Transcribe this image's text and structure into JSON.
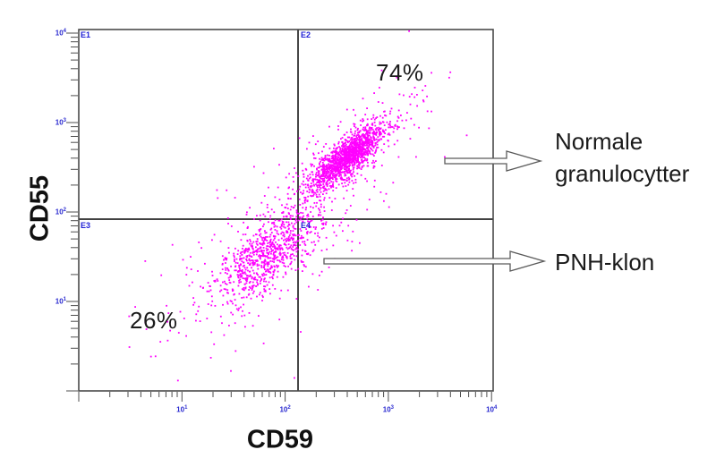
{
  "chart_data": {
    "type": "scatter",
    "title": "",
    "xlabel": "CD59",
    "ylabel": "CD55",
    "x_scale": "log",
    "y_scale": "log",
    "x_range_decades": [
      0,
      4
    ],
    "y_range_decades": [
      0,
      4
    ],
    "grid": false,
    "point_color": "#ff00ff",
    "tick_label_color": "#2a2ad0",
    "quadrant_label_color": "#1f1fd6",
    "x_tick_labels": [
      {
        "decade": 1,
        "base": "10",
        "exp": "1"
      },
      {
        "decade": 2,
        "base": "10",
        "exp": "2"
      },
      {
        "decade": 3,
        "base": "10",
        "exp": "3"
      },
      {
        "decade": 4,
        "base": "10",
        "exp": "4"
      }
    ],
    "y_tick_labels": [
      {
        "decade": 1,
        "base": "10",
        "exp": "1"
      },
      {
        "decade": 2,
        "base": "10",
        "exp": "2"
      },
      {
        "decade": 3,
        "base": "10",
        "exp": "3"
      },
      {
        "decade": 4,
        "base": "10",
        "exp": "4"
      }
    ],
    "quadrant_gate": {
      "x_decade": 2.125,
      "y_decade": 1.92,
      "labels": {
        "upper_left": "E1",
        "upper_right": "E2",
        "lower_left": "E3",
        "lower_right": "E4"
      }
    },
    "quadrant_stats": {
      "upper_right": "74%",
      "lower_left": "26%"
    },
    "clusters": [
      {
        "name": "normale-granulocytter",
        "center_decades": [
          2.61,
          2.62
        ],
        "sigma_along": 0.22,
        "sigma_perp": 0.075,
        "angle_deg": 45,
        "count": 1600,
        "halo_fraction": 0.2,
        "halo_scale": 2.4
      },
      {
        "name": "pnh-klon",
        "center_decades": [
          1.82,
          1.5
        ],
        "sigma_along": 0.3,
        "sigma_perp": 0.14,
        "angle_deg": 45,
        "count": 900,
        "halo_fraction": 0.28,
        "halo_scale": 2.4
      },
      {
        "name": "bridge",
        "center_decades": [
          2.12,
          2.02
        ],
        "sigma_along": 0.45,
        "sigma_perp": 0.11,
        "angle_deg": 45,
        "count": 140,
        "halo_fraction": 0.5,
        "halo_scale": 1.6
      }
    ],
    "annotations": [
      {
        "id": "normal",
        "lines": [
          "Normale",
          "granulocytter"
        ]
      },
      {
        "id": "pnh",
        "lines": [
          "PNH-klon"
        ]
      }
    ]
  }
}
